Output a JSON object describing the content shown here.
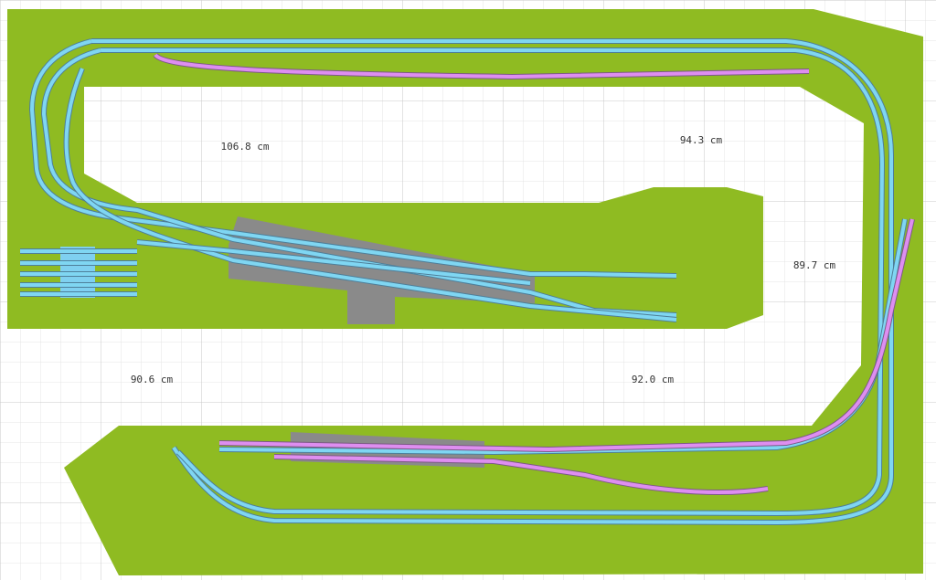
{
  "dimensions": [
    "106.8 cm",
    "94.3 cm",
    "89.7 cm",
    "90.6 cm",
    "92.0 cm"
  ]
}
